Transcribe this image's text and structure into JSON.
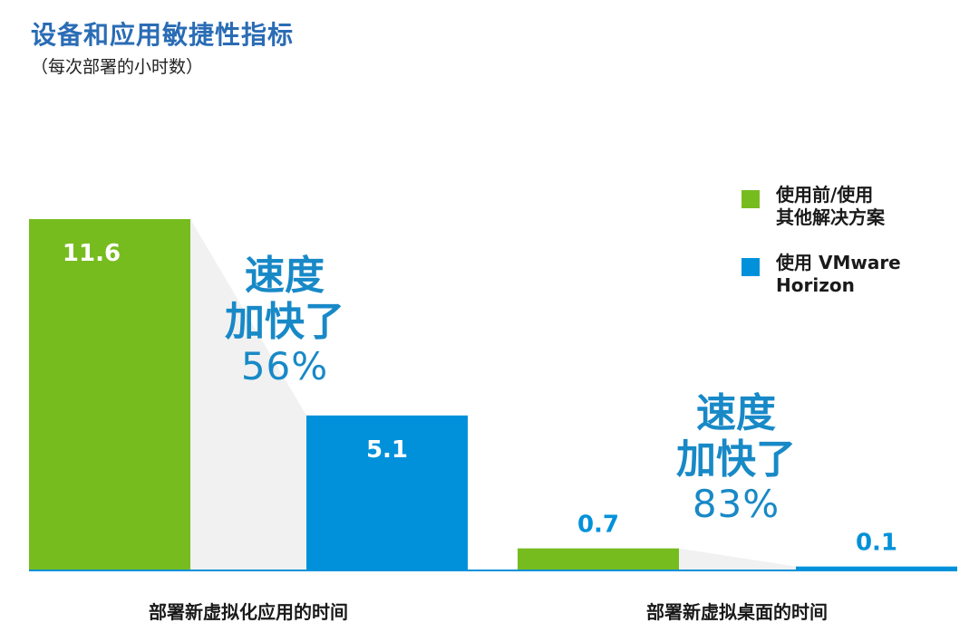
{
  "title": "设备和应用敏捷性指标",
  "subtitle": "（每次部署的小时数）",
  "colors": {
    "before": "#77bc1f",
    "after": "#0091da",
    "callout": "#1889c7",
    "title": "#2a6cb5"
  },
  "chart_data": {
    "type": "bar",
    "title": "设备和应用敏捷性指标",
    "subtitle": "（每次部署的小时数）",
    "categories": [
      "部署新虚拟化应用的时间",
      "部署新虚拟桌面的时间"
    ],
    "series": [
      {
        "name": "使用前/使用\n其他解决方案",
        "values": [
          11.6,
          0.7
        ],
        "labels": [
          "11.6",
          "0.7"
        ]
      },
      {
        "name": "使用 VMware\nHorizon",
        "values": [
          5.1,
          0.1
        ],
        "labels": [
          "5.1",
          "0.1"
        ]
      }
    ],
    "legend_position": "top-right",
    "grid": false,
    "annotations": [
      {
        "line1": "速度",
        "line2": "加快了",
        "value": "56%"
      },
      {
        "line1": "速度",
        "line2": "加快了",
        "value": "83%"
      }
    ]
  }
}
